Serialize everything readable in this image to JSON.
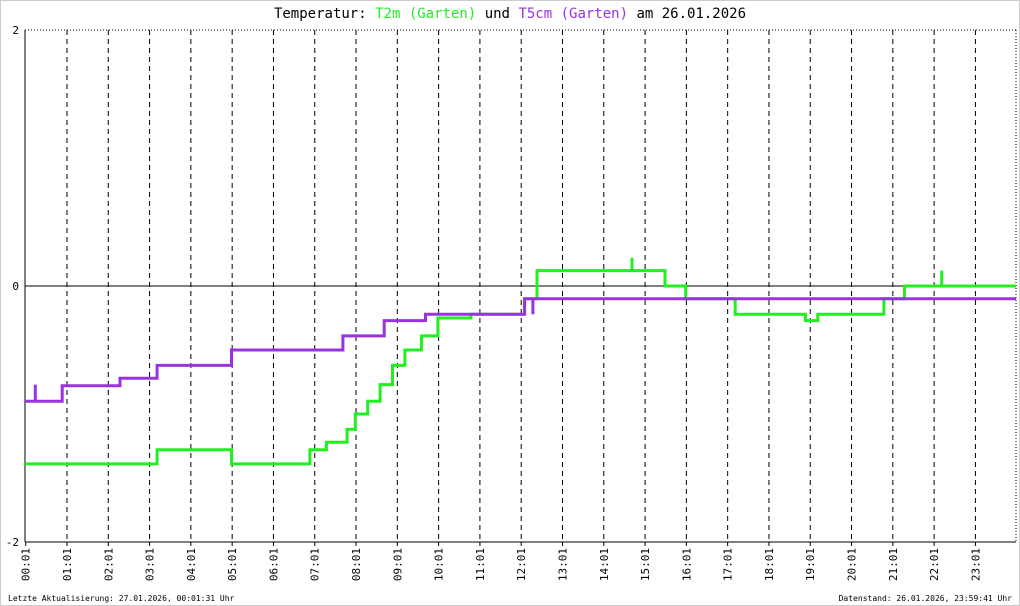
{
  "chart_data": {
    "type": "line",
    "title_parts": [
      "Temperatur:",
      "und",
      "am 26.01.2026"
    ],
    "footer_left": "Letzte Aktualisierung: 27.01.2026, 00:01:31 Uhr",
    "footer_right": "Datenstand: 26.01.2026, 23:59:41 Uhr",
    "xlim": [
      0,
      24
    ],
    "ylim": [
      -2,
      2
    ],
    "yticks": [
      -2,
      0,
      2
    ],
    "grid": true,
    "xticks": [
      {
        "value": 0.017,
        "label": "00:01"
      },
      {
        "value": 1.017,
        "label": "01:01"
      },
      {
        "value": 2.017,
        "label": "02:01"
      },
      {
        "value": 3.017,
        "label": "03:01"
      },
      {
        "value": 4.017,
        "label": "04:01"
      },
      {
        "value": 5.017,
        "label": "05:01"
      },
      {
        "value": 6.017,
        "label": "06:01"
      },
      {
        "value": 7.017,
        "label": "07:01"
      },
      {
        "value": 8.017,
        "label": "08:01"
      },
      {
        "value": 9.017,
        "label": "09:01"
      },
      {
        "value": 10.017,
        "label": "10:01"
      },
      {
        "value": 11.017,
        "label": "11:01"
      },
      {
        "value": 12.017,
        "label": "12:01"
      },
      {
        "value": 13.017,
        "label": "13:01"
      },
      {
        "value": 14.017,
        "label": "14:01"
      },
      {
        "value": 15.017,
        "label": "15:01"
      },
      {
        "value": 16.017,
        "label": "16:01"
      },
      {
        "value": 17.017,
        "label": "17:01"
      },
      {
        "value": 18.017,
        "label": "18:01"
      },
      {
        "value": 19.017,
        "label": "19:01"
      },
      {
        "value": 20.017,
        "label": "20:01"
      },
      {
        "value": 21.017,
        "label": "21:01"
      },
      {
        "value": 22.017,
        "label": "22:01"
      },
      {
        "value": 23.017,
        "label": "23:01"
      }
    ],
    "series": [
      {
        "name": "T2m (Garten)",
        "color": "#22ee22",
        "x": [
          0,
          3.2,
          3.2,
          5.0,
          5.0,
          6.9,
          6.9,
          7.3,
          7.3,
          7.8,
          7.8,
          8.0,
          8.0,
          8.3,
          8.3,
          8.6,
          8.6,
          8.9,
          8.9,
          9.2,
          9.2,
          9.6,
          9.6,
          10.0,
          10.0,
          10.8,
          10.8,
          12.1,
          12.1,
          12.4,
          12.4,
          14.7,
          14.7,
          14.7,
          15.5,
          15.5,
          16.0,
          16.0,
          17.2,
          17.2,
          18.9,
          18.9,
          19.2,
          19.2,
          20.8,
          20.8,
          21.3,
          21.3,
          22.2,
          22.2,
          22.2,
          24
        ],
        "values": [
          -1.39,
          -1.39,
          -1.28,
          -1.28,
          -1.39,
          -1.39,
          -1.28,
          -1.28,
          -1.22,
          -1.22,
          -1.12,
          -1.12,
          -1.0,
          -1.0,
          -0.9,
          -0.9,
          -0.77,
          -0.77,
          -0.62,
          -0.62,
          -0.5,
          -0.5,
          -0.39,
          -0.39,
          -0.25,
          -0.25,
          -0.22,
          -0.22,
          -0.1,
          -0.1,
          0.12,
          0.12,
          0.22,
          0.12,
          0.12,
          0,
          0,
          -0.1,
          -0.1,
          -0.22,
          -0.22,
          -0.27,
          -0.27,
          -0.22,
          -0.22,
          -0.1,
          -0.1,
          0,
          0,
          0.12,
          0,
          0
        ]
      },
      {
        "name": "T5cm (Garten)",
        "color": "#9933dd",
        "x": [
          0,
          0.25,
          0.25,
          0.25,
          0.9,
          0.9,
          2.3,
          2.3,
          3.2,
          3.2,
          5.0,
          5.0,
          7.7,
          7.7,
          8.7,
          8.7,
          9.7,
          9.7,
          12.1,
          12.1,
          12.3,
          12.3,
          12.3,
          24
        ],
        "values": [
          -0.9,
          -0.9,
          -0.77,
          -0.9,
          -0.9,
          -0.78,
          -0.78,
          -0.72,
          -0.72,
          -0.62,
          -0.62,
          -0.5,
          -0.5,
          -0.39,
          -0.39,
          -0.27,
          -0.27,
          -0.22,
          -0.22,
          -0.1,
          -0.1,
          -0.22,
          -0.1,
          -0.1
        ]
      }
    ]
  }
}
